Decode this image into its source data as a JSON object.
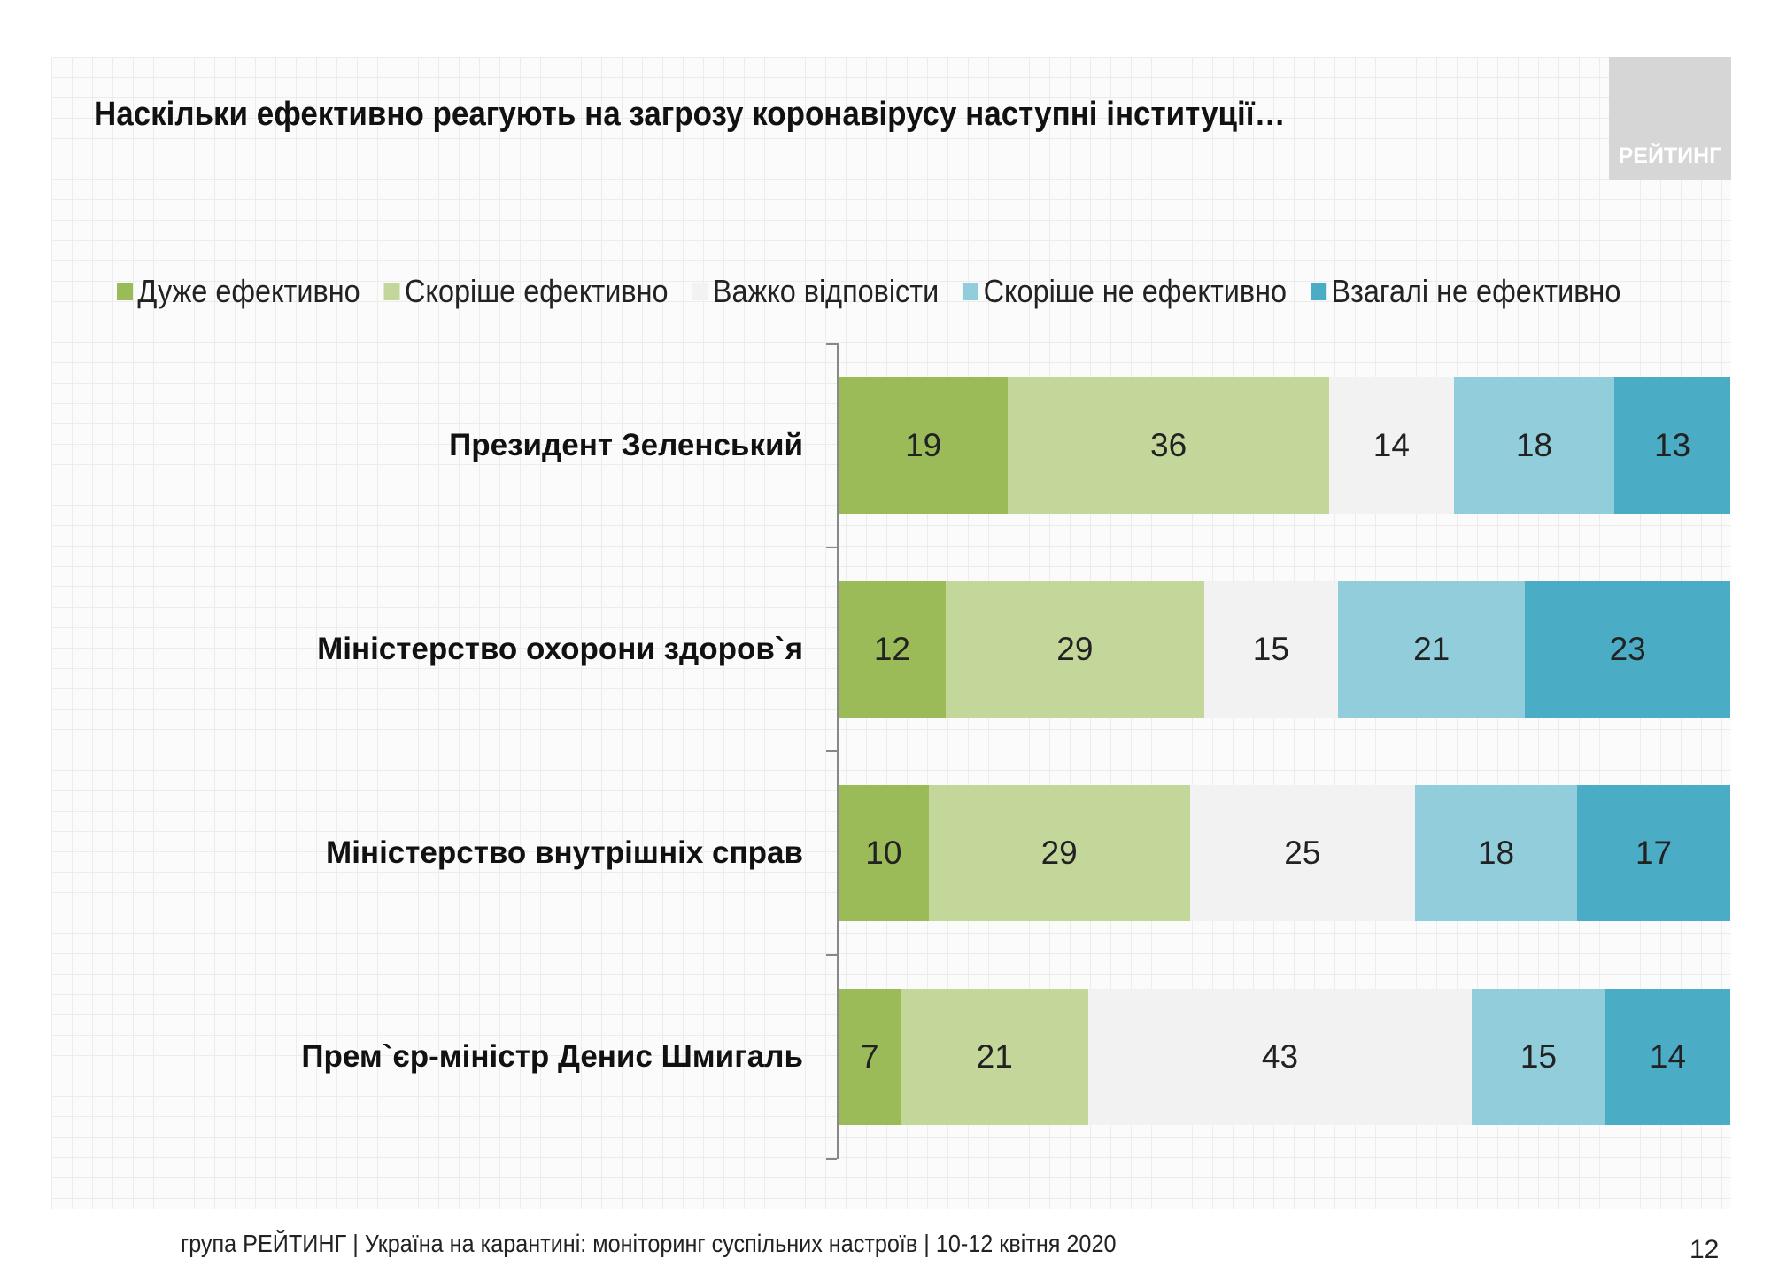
{
  "chart_data": {
    "type": "bar",
    "orientation": "horizontal",
    "stacked": true,
    "title": "Наскільки ефективно реагують на загрозу коронавірусу наступні інституції…",
    "categories": [
      "Президент Зеленський",
      "Міністерство охорони здоров`я",
      "Міністерство внутрішніх справ",
      "Прем`єр-міністр Денис Шмигаль"
    ],
    "series": [
      {
        "name": "Дуже ефективно",
        "color": "#9bbb59",
        "values": [
          19,
          12,
          10,
          7
        ]
      },
      {
        "name": "Скоріше ефективно",
        "color": "#c4d79b",
        "values": [
          36,
          29,
          29,
          21
        ]
      },
      {
        "name": "Важко відповісти",
        "color": "#f2f2f2",
        "values": [
          14,
          15,
          25,
          43
        ]
      },
      {
        "name": "Скоріше не ефективно",
        "color": "#92cddc",
        "values": [
          18,
          21,
          18,
          15
        ]
      },
      {
        "name": "Взагалі не ефективно",
        "color": "#4bacc6",
        "values": [
          13,
          23,
          17,
          14
        ]
      }
    ],
    "legend_position": "top",
    "grid": false
  },
  "logo_text": "РЕЙТИНГ",
  "footer": "група РЕЙТИНГ | Україна на карантині: моніторинг суспільних настроїв  | 10-12 квітня  2020",
  "page_number": "12"
}
